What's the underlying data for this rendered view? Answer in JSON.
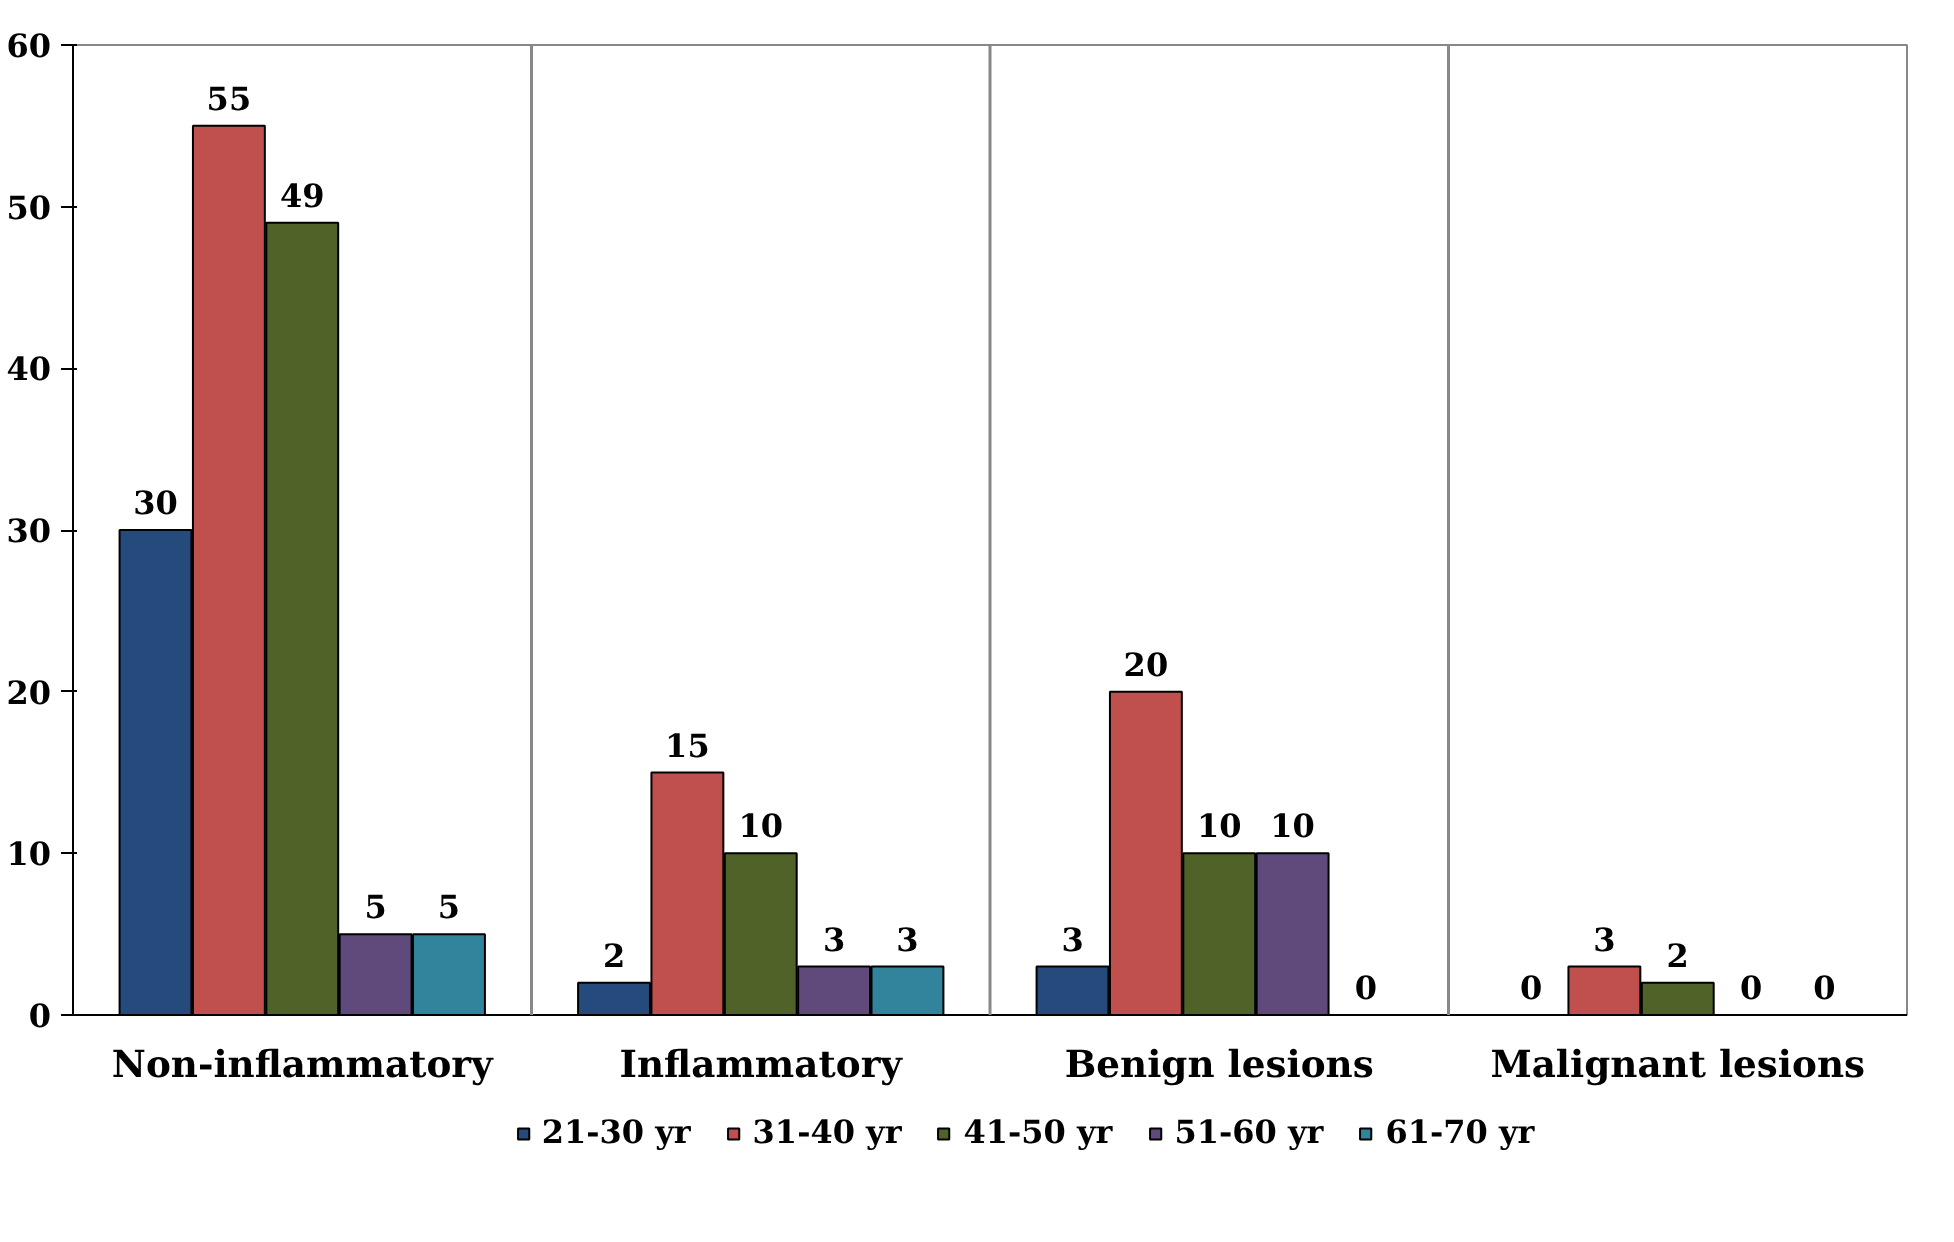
{
  "chart_data": {
    "type": "bar",
    "categories": [
      "Non-inflammatory",
      "Inflammatory",
      "Benign lesions",
      "Malignant lesions"
    ],
    "series": [
      {
        "name": "21-30 yr",
        "color": "#254b7d",
        "values": [
          30,
          2,
          3,
          0
        ]
      },
      {
        "name": "31-40 yr",
        "color": "#c0504d",
        "values": [
          55,
          15,
          20,
          3
        ]
      },
      {
        "name": "41-50 yr",
        "color": "#4f6228",
        "values": [
          49,
          10,
          10,
          2
        ]
      },
      {
        "name": "51-60 yr",
        "color": "#604a7b",
        "values": [
          5,
          3,
          10,
          0
        ]
      },
      {
        "name": "61-70 yr",
        "color": "#31849b",
        "values": [
          5,
          3,
          0,
          0
        ]
      }
    ],
    "ylim": [
      0,
      60
    ],
    "yticks": [
      0,
      10,
      20,
      30,
      40,
      50,
      60
    ],
    "grid": "x",
    "legend": "bottom",
    "data_labels": true
  }
}
